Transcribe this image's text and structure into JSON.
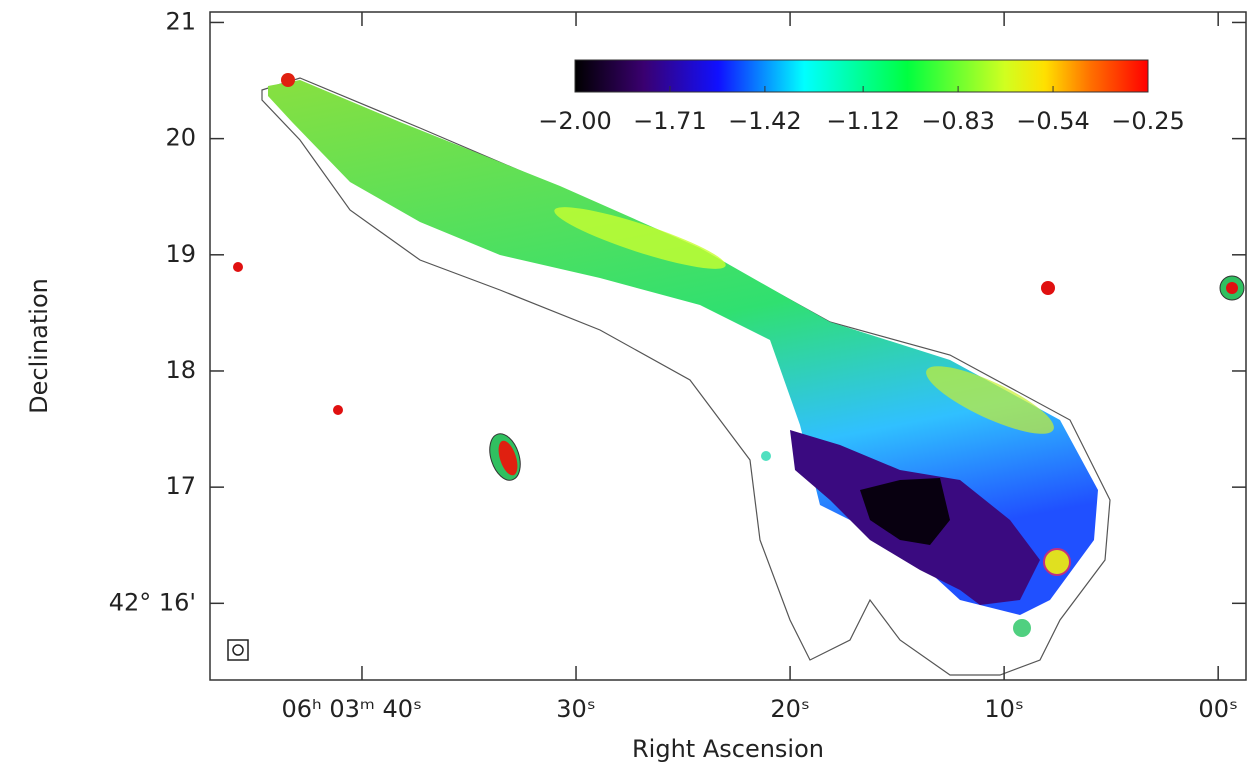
{
  "chart_data": {
    "type": "image",
    "x_label": "Right Ascension",
    "y_label": "Declination",
    "xlim": [
      47.1,
      -1.3
    ],
    "xticks": [
      {
        "value": 40,
        "label": "06ʰ 03ᵐ 40ˢ"
      },
      {
        "value": 30,
        "label": "30ˢ"
      },
      {
        "value": 20,
        "label": "20ˢ"
      },
      {
        "value": 10,
        "label": "10ˢ"
      },
      {
        "value": 0,
        "label": "00ˢ"
      }
    ],
    "ylim": [
      15.34,
      21.09
    ],
    "yticks": [
      {
        "value": 16,
        "label": "42° 16'"
      },
      17,
      18,
      19,
      20,
      21
    ],
    "colorbar": {
      "lim": [
        -2.0,
        -0.25
      ],
      "ticks": [
        {
          "value": -2.0,
          "label": "−2.00"
        },
        {
          "value": -1.71,
          "label": "−1.71"
        },
        {
          "value": -1.42,
          "label": "−1.42"
        },
        {
          "value": -1.12,
          "label": "−1.12"
        },
        {
          "value": -0.83,
          "label": "−0.83"
        },
        {
          "value": -0.54,
          "label": "−0.54"
        },
        {
          "value": -0.25,
          "label": "−0.25"
        }
      ]
    }
  }
}
